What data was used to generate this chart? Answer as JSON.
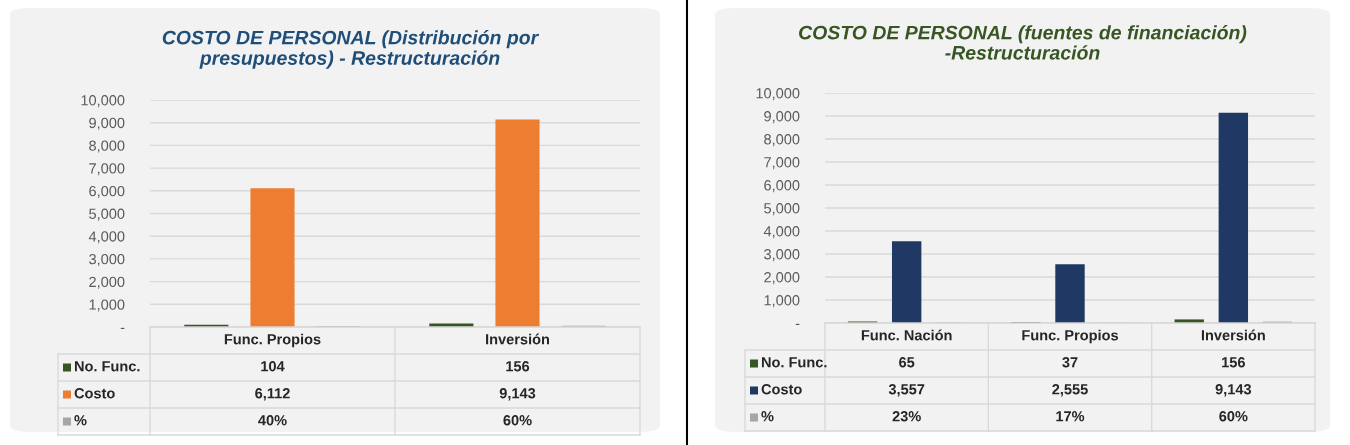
{
  "chart_data": [
    {
      "type": "bar",
      "title": "COSTO DE PERSONAL (Distribución por\npresupuestos) - Restructuración",
      "categories": [
        "Func. Propios",
        "Inversión"
      ],
      "series": [
        {
          "name": "No. Func.",
          "color": "#375623",
          "values": [
            104,
            156
          ],
          "value_labels": [
            "104",
            "156"
          ]
        },
        {
          "name": "Costo",
          "color": "#ed7d31",
          "values": [
            6112,
            9143
          ],
          "value_labels": [
            "6,112",
            "9,143"
          ]
        },
        {
          "name": "%",
          "color": "#a5a5a5",
          "values": [
            40,
            60
          ],
          "value_labels": [
            "40%",
            "60%"
          ]
        }
      ],
      "ylim": [
        0,
        10000
      ],
      "yticks": [
        {
          "value": 0,
          "label": "-"
        },
        {
          "value": 1000,
          "label": "1,000"
        },
        {
          "value": 2000,
          "label": "2,000"
        },
        {
          "value": 3000,
          "label": "3,000"
        },
        {
          "value": 4000,
          "label": "4,000"
        },
        {
          "value": 5000,
          "label": "5,000"
        },
        {
          "value": 6000,
          "label": "6,000"
        },
        {
          "value": 7000,
          "label": "7,000"
        },
        {
          "value": 8000,
          "label": "8,000"
        },
        {
          "value": 9000,
          "label": "9,000"
        },
        {
          "value": 10000,
          "label": "10,000"
        }
      ],
      "grid": "y",
      "legend": "bottom left"
    },
    {
      "type": "bar",
      "title": "COSTO DE PERSONAL (fuentes de financiación)\n-Restructuración",
      "categories": [
        "Func. Nación",
        "Func. Propios",
        "Inversión"
      ],
      "series": [
        {
          "name": "No. Func.",
          "color": "#375623",
          "values": [
            65,
            37,
            156
          ],
          "value_labels": [
            "65",
            "37",
            "156"
          ]
        },
        {
          "name": "Costo",
          "color": "#203864",
          "values": [
            3557,
            2555,
            9143
          ],
          "value_labels": [
            "3,557",
            "2,555",
            "9,143"
          ]
        },
        {
          "name": "%",
          "color": "#a5a5a5",
          "values": [
            23,
            17,
            60
          ],
          "value_labels": [
            "23%",
            "17%",
            "60%"
          ]
        }
      ],
      "ylim": [
        0,
        10000
      ],
      "yticks": [
        {
          "value": 0,
          "label": "-"
        },
        {
          "value": 1000,
          "label": "1,000"
        },
        {
          "value": 2000,
          "label": "2,000"
        },
        {
          "value": 3000,
          "label": "3,000"
        },
        {
          "value": 4000,
          "label": "4,000"
        },
        {
          "value": 5000,
          "label": "5,000"
        },
        {
          "value": 6000,
          "label": "6,000"
        },
        {
          "value": 7000,
          "label": "7,000"
        },
        {
          "value": 8000,
          "label": "8,000"
        },
        {
          "value": 9000,
          "label": "9,000"
        },
        {
          "value": 10000,
          "label": "10,000"
        }
      ],
      "grid": "y",
      "legend": "bottom left"
    }
  ]
}
